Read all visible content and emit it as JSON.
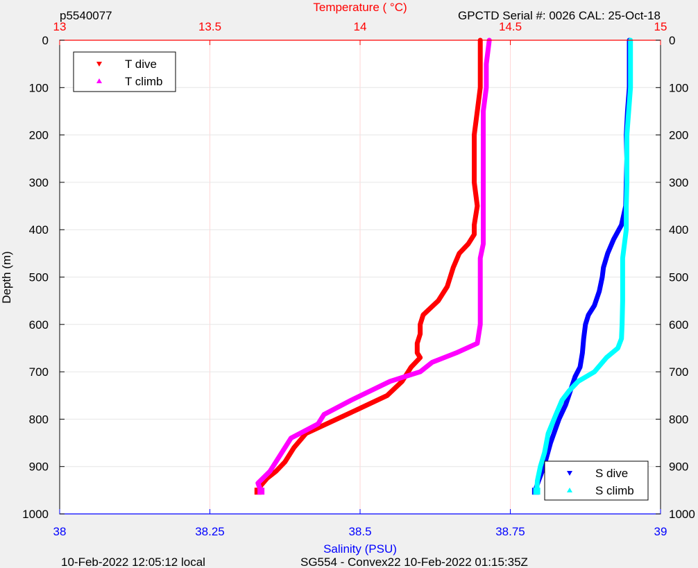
{
  "header": {
    "profile_id": "p5540077",
    "serial_info": "GPCTD Serial #: 0026 CAL: 25-Oct-18"
  },
  "footer": {
    "local_time": "10-Feb-2022 12:05:12 local",
    "mission_info": "SG554 - Convex22 10-Feb-2022 01:15:35Z"
  },
  "chart_data": {
    "type": "line",
    "grid": true,
    "colors": {
      "T_dive": "#ff0000",
      "T_climb": "#ff00ff",
      "S_dive": "#0000ff",
      "S_climb": "#00ffff",
      "temperature_axis": "#ff0000",
      "salinity_axis": "#0000ff",
      "depth_axis": "#000000"
    },
    "axes": {
      "temperature": {
        "label": "Temperature (    °C)",
        "range": [
          13,
          15
        ],
        "ticks": [
          13,
          13.5,
          14,
          14.5,
          15
        ],
        "tick_labels": [
          "13",
          "13.5",
          "14",
          "14.5",
          "15"
        ],
        "position": "top"
      },
      "salinity": {
        "label": "Salinity (PSU)",
        "range": [
          38,
          39
        ],
        "ticks": [
          38,
          38.25,
          38.5,
          38.75,
          39
        ],
        "tick_labels": [
          "38",
          "38.25",
          "38.5",
          "38.75",
          "39"
        ],
        "position": "bottom"
      },
      "depth": {
        "label": "Depth (m)",
        "range": [
          0,
          1000
        ],
        "reversed": true,
        "ticks": [
          0,
          100,
          200,
          300,
          400,
          500,
          600,
          700,
          800,
          900,
          1000
        ],
        "tick_labels": [
          "0",
          "100",
          "200",
          "300",
          "400",
          "500",
          "600",
          "700",
          "800",
          "900",
          "1000"
        ]
      }
    },
    "legends": [
      {
        "placement": "top-left",
        "entries": [
          {
            "name": "T dive",
            "series": "T_dive",
            "marker": "down"
          },
          {
            "name": "T climb",
            "series": "T_climb",
            "marker": "up"
          }
        ]
      },
      {
        "placement": "bottom-right",
        "entries": [
          {
            "name": "S dive",
            "series": "S_dive",
            "marker": "down"
          },
          {
            "name": "S climb",
            "series": "S_climb",
            "marker": "up"
          }
        ]
      }
    ],
    "series": [
      {
        "name": "T dive",
        "key": "T_dive",
        "axis": "temperature",
        "points": [
          [
            14.4,
            0
          ],
          [
            14.4,
            50
          ],
          [
            14.4,
            100
          ],
          [
            14.39,
            150
          ],
          [
            14.38,
            200
          ],
          [
            14.38,
            250
          ],
          [
            14.38,
            300
          ],
          [
            14.39,
            350
          ],
          [
            14.38,
            390
          ],
          [
            14.38,
            410
          ],
          [
            14.36,
            430
          ],
          [
            14.33,
            450
          ],
          [
            14.31,
            480
          ],
          [
            14.3,
            500
          ],
          [
            14.29,
            520
          ],
          [
            14.26,
            550
          ],
          [
            14.21,
            580
          ],
          [
            14.2,
            600
          ],
          [
            14.2,
            620
          ],
          [
            14.19,
            640
          ],
          [
            14.19,
            660
          ],
          [
            14.2,
            670
          ],
          [
            14.17,
            690
          ],
          [
            14.14,
            720
          ],
          [
            14.09,
            750
          ],
          [
            13.99,
            780
          ],
          [
            13.82,
            830
          ],
          [
            13.78,
            860
          ],
          [
            13.75,
            890
          ],
          [
            13.72,
            910
          ],
          [
            13.69,
            925
          ],
          [
            13.67,
            940
          ],
          [
            13.66,
            952
          ]
        ]
      },
      {
        "name": "T climb",
        "key": "T_climb",
        "axis": "temperature",
        "points": [
          [
            14.43,
            0
          ],
          [
            14.42,
            50
          ],
          [
            14.42,
            100
          ],
          [
            14.41,
            150
          ],
          [
            14.41,
            200
          ],
          [
            14.41,
            250
          ],
          [
            14.41,
            300
          ],
          [
            14.41,
            350
          ],
          [
            14.41,
            400
          ],
          [
            14.41,
            430
          ],
          [
            14.4,
            460
          ],
          [
            14.4,
            500
          ],
          [
            14.4,
            550
          ],
          [
            14.4,
            600
          ],
          [
            14.39,
            640
          ],
          [
            14.32,
            660
          ],
          [
            14.24,
            680
          ],
          [
            14.2,
            700
          ],
          [
            14.1,
            720
          ],
          [
            13.97,
            760
          ],
          [
            13.88,
            790
          ],
          [
            13.86,
            810
          ],
          [
            13.83,
            820
          ],
          [
            13.77,
            840
          ],
          [
            13.73,
            880
          ],
          [
            13.7,
            910
          ],
          [
            13.66,
            935
          ],
          [
            13.67,
            952
          ]
        ]
      },
      {
        "name": "S dive",
        "key": "S_dive",
        "axis": "salinity",
        "points": [
          [
            38.948,
            0
          ],
          [
            38.948,
            50
          ],
          [
            38.948,
            100
          ],
          [
            38.945,
            150
          ],
          [
            38.943,
            200
          ],
          [
            38.944,
            250
          ],
          [
            38.943,
            300
          ],
          [
            38.942,
            350
          ],
          [
            38.935,
            390
          ],
          [
            38.922,
            420
          ],
          [
            38.912,
            450
          ],
          [
            38.905,
            480
          ],
          [
            38.903,
            500
          ],
          [
            38.898,
            530
          ],
          [
            38.89,
            560
          ],
          [
            38.88,
            580
          ],
          [
            38.875,
            600
          ],
          [
            38.872,
            630
          ],
          [
            38.87,
            660
          ],
          [
            38.866,
            690
          ],
          [
            38.858,
            710
          ],
          [
            38.85,
            740
          ],
          [
            38.842,
            770
          ],
          [
            38.831,
            800
          ],
          [
            38.817,
            850
          ],
          [
            38.806,
            900
          ],
          [
            38.797,
            930
          ],
          [
            38.793,
            945
          ],
          [
            38.792,
            952
          ]
        ]
      },
      {
        "name": "S climb",
        "key": "S_climb",
        "axis": "salinity",
        "points": [
          [
            38.95,
            0
          ],
          [
            38.95,
            50
          ],
          [
            38.95,
            100
          ],
          [
            38.947,
            150
          ],
          [
            38.944,
            200
          ],
          [
            38.944,
            250
          ],
          [
            38.944,
            300
          ],
          [
            38.943,
            350
          ],
          [
            38.943,
            400
          ],
          [
            38.94,
            430
          ],
          [
            38.937,
            460
          ],
          [
            38.937,
            500
          ],
          [
            38.937,
            550
          ],
          [
            38.936,
            600
          ],
          [
            38.935,
            630
          ],
          [
            38.929,
            650
          ],
          [
            38.91,
            670
          ],
          [
            38.89,
            700
          ],
          [
            38.863,
            720
          ],
          [
            38.848,
            740
          ],
          [
            38.836,
            760
          ],
          [
            38.826,
            790
          ],
          [
            38.813,
            830
          ],
          [
            38.807,
            870
          ],
          [
            38.8,
            900
          ],
          [
            38.795,
            930
          ],
          [
            38.794,
            952
          ]
        ]
      }
    ]
  }
}
